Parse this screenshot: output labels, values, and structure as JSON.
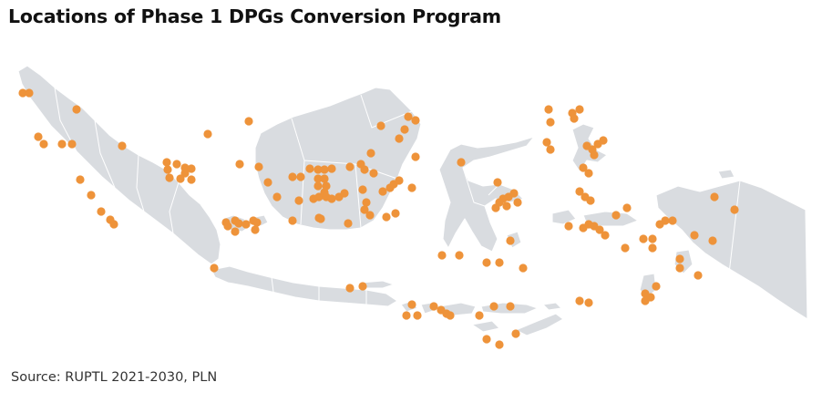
{
  "title": "Locations of Phase 1 DPGs Conversion Program",
  "source": "Source: RUPTL 2021-2030, PLN",
  "colors": {
    "land": "#d9dce0",
    "site": "#ee933a",
    "background": "#ffffff"
  }
}
